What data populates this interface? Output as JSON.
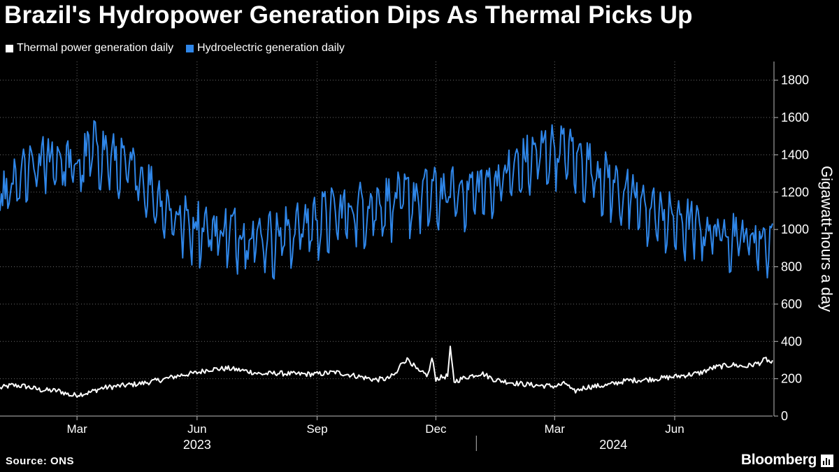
{
  "title": "Brazil's Hydropower Generation Dips As Thermal Picks Up",
  "legend": [
    {
      "label": "Thermal power generation daily",
      "color": "#ffffff"
    },
    {
      "label": "Hydroelectric generation daily",
      "color": "#2f86e8"
    }
  ],
  "source": "Source: ONS",
  "brand": "Bloomberg",
  "chart_data": {
    "type": "line",
    "ylabel": "Gigawatt-hours a day",
    "ylim": [
      0,
      1900
    ],
    "yticks": [
      0,
      200,
      400,
      600,
      800,
      1000,
      1200,
      1400,
      1600,
      1800
    ],
    "x_range": [
      "2023-01-01",
      "2024-08-15"
    ],
    "month_ticks": [
      {
        "label": "Mar",
        "date": "2023-03-01"
      },
      {
        "label": "Jun",
        "date": "2023-06-01"
      },
      {
        "label": "Sep",
        "date": "2023-09-01"
      },
      {
        "label": "Dec",
        "date": "2023-12-01"
      },
      {
        "label": "Mar",
        "date": "2024-03-01"
      },
      {
        "label": "Jun",
        "date": "2024-06-01"
      }
    ],
    "year_labels": [
      {
        "label": "2023",
        "center": "2023-06-01"
      },
      {
        "label": "2024",
        "center": "2024-04-15"
      }
    ],
    "year_divider": "2024-01-01",
    "grid": true,
    "series": [
      {
        "name": "Thermal power generation daily",
        "color": "#ffffff",
        "anchors": [
          [
            "2023-01-01",
            150
          ],
          [
            "2023-01-10",
            165
          ],
          [
            "2023-01-20",
            160
          ],
          [
            "2023-02-01",
            140
          ],
          [
            "2023-02-15",
            135
          ],
          [
            "2023-02-25",
            110
          ],
          [
            "2023-03-10",
            125
          ],
          [
            "2023-03-20",
            150
          ],
          [
            "2023-04-01",
            160
          ],
          [
            "2023-04-20",
            175
          ],
          [
            "2023-05-05",
            195
          ],
          [
            "2023-05-20",
            220
          ],
          [
            "2023-06-01",
            232
          ],
          [
            "2023-06-10",
            250
          ],
          [
            "2023-06-25",
            255
          ],
          [
            "2023-07-10",
            240
          ],
          [
            "2023-07-20",
            225
          ],
          [
            "2023-08-01",
            230
          ],
          [
            "2023-08-15",
            225
          ],
          [
            "2023-09-01",
            225
          ],
          [
            "2023-09-15",
            235
          ],
          [
            "2023-10-01",
            215
          ],
          [
            "2023-10-15",
            195
          ],
          [
            "2023-10-25",
            200
          ],
          [
            "2023-11-01",
            230
          ],
          [
            "2023-11-05",
            290
          ],
          [
            "2023-11-10",
            305
          ],
          [
            "2023-11-18",
            235
          ],
          [
            "2023-11-25",
            220
          ],
          [
            "2023-11-28",
            310
          ],
          [
            "2023-12-01",
            200
          ],
          [
            "2023-12-10",
            215
          ],
          [
            "2023-12-12",
            360
          ],
          [
            "2023-12-15",
            185
          ],
          [
            "2023-12-25",
            210
          ],
          [
            "2024-01-05",
            230
          ],
          [
            "2024-01-15",
            195
          ],
          [
            "2024-02-01",
            175
          ],
          [
            "2024-02-15",
            165
          ],
          [
            "2024-03-01",
            160
          ],
          [
            "2024-03-10",
            175
          ],
          [
            "2024-03-15",
            130
          ],
          [
            "2024-03-25",
            155
          ],
          [
            "2024-04-10",
            165
          ],
          [
            "2024-04-25",
            190
          ],
          [
            "2024-05-10",
            195
          ],
          [
            "2024-05-25",
            205
          ],
          [
            "2024-06-05",
            215
          ],
          [
            "2024-06-20",
            230
          ],
          [
            "2024-07-01",
            260
          ],
          [
            "2024-07-15",
            275
          ],
          [
            "2024-07-25",
            265
          ],
          [
            "2024-08-05",
            285
          ],
          [
            "2024-08-10",
            305
          ],
          [
            "2024-08-14",
            285
          ]
        ],
        "noise": 14
      },
      {
        "name": "Hydroelectric generation daily",
        "color": "#2f86e8",
        "anchors": [
          [
            "2023-01-01",
            1150
          ],
          [
            "2023-01-20",
            1300
          ],
          [
            "2023-02-10",
            1400
          ],
          [
            "2023-03-01",
            1330
          ],
          [
            "2023-03-15",
            1450
          ],
          [
            "2023-04-01",
            1360
          ],
          [
            "2023-04-20",
            1280
          ],
          [
            "2023-05-05",
            1150
          ],
          [
            "2023-05-20",
            1050
          ],
          [
            "2023-06-15",
            1000
          ],
          [
            "2023-07-10",
            980
          ],
          [
            "2023-08-01",
            960
          ],
          [
            "2023-08-25",
            1040
          ],
          [
            "2023-09-15",
            1090
          ],
          [
            "2023-10-10",
            1130
          ],
          [
            "2023-11-01",
            1160
          ],
          [
            "2023-11-25",
            1190
          ],
          [
            "2023-12-15",
            1200
          ],
          [
            "2024-01-10",
            1240
          ],
          [
            "2024-02-01",
            1330
          ],
          [
            "2024-02-20",
            1420
          ],
          [
            "2024-03-05",
            1440
          ],
          [
            "2024-03-20",
            1380
          ],
          [
            "2024-04-10",
            1270
          ],
          [
            "2024-05-01",
            1160
          ],
          [
            "2024-05-20",
            1080
          ],
          [
            "2024-06-15",
            1020
          ],
          [
            "2024-07-10",
            990
          ],
          [
            "2024-08-01",
            960
          ],
          [
            "2024-08-14",
            950
          ]
        ],
        "noise": 170
      }
    ]
  }
}
